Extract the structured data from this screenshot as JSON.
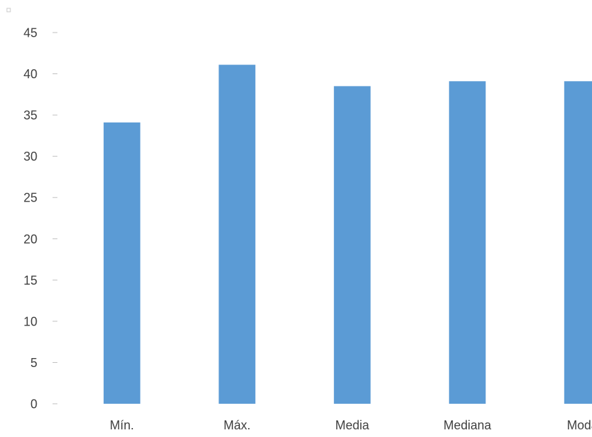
{
  "chart_data": {
    "type": "bar",
    "title": "",
    "xlabel": "",
    "ylabel": "",
    "categories": [
      "Mín.",
      "Máx.",
      "Media",
      "Mediana",
      "Moda"
    ],
    "values": [
      34.1,
      41.1,
      38.5,
      39.1,
      39.1
    ],
    "ylim": [
      0,
      45
    ],
    "yticks": [
      "0",
      "5",
      "10",
      "15",
      "20",
      "25",
      "30",
      "35",
      "40",
      "45"
    ],
    "grid": false,
    "legend": "none",
    "colors": {
      "bar": "#5B9BD5",
      "tick_text": "#404040",
      "tick_mark": "#BFBFBF"
    }
  }
}
